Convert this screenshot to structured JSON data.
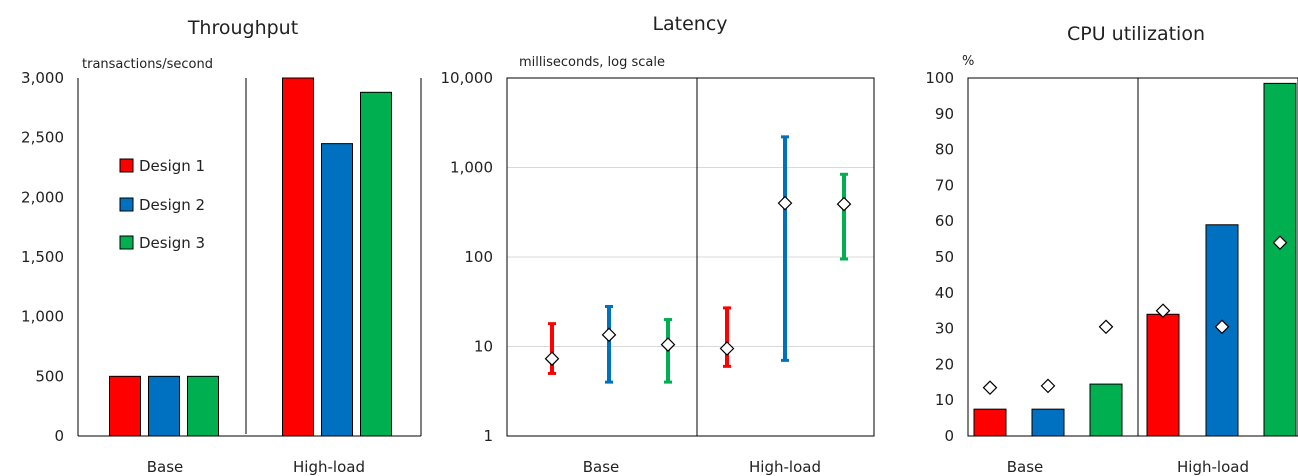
{
  "colors": {
    "design1": "#ff0000",
    "design2": "#0070c0",
    "design3": "#00b050",
    "grid": "#d9d9d9",
    "frame": "#000000"
  },
  "legend": {
    "items": [
      "Design 1",
      "Design 2",
      "Design 3"
    ]
  },
  "chart_data": [
    {
      "type": "bar",
      "title": "Throughput",
      "ylabel": "transactions/second",
      "ylim": [
        0,
        3000
      ],
      "yticks": [
        "0",
        "500",
        "1,000",
        "1,500",
        "2,000",
        "2,500",
        "3,000"
      ],
      "categories": [
        "Base",
        "High-load"
      ],
      "series": [
        {
          "name": "Design 1",
          "values": [
            500,
            3000
          ]
        },
        {
          "name": "Design 2",
          "values": [
            500,
            2450
          ]
        },
        {
          "name": "Design 3",
          "values": [
            500,
            2880
          ]
        }
      ],
      "grid": false
    },
    {
      "type": "scatter",
      "title": "Latency",
      "ylabel": "milliseconds, log scale",
      "yscale": "log",
      "ylim": [
        1,
        10000
      ],
      "yticks": [
        "1",
        "10",
        "100",
        "1,000",
        "10,000"
      ],
      "categories": [
        "Base",
        "High-load"
      ],
      "series": [
        {
          "name": "Design 1",
          "points": [
            {
              "mid": 7.3,
              "low": 5,
              "high": 18
            },
            {
              "mid": 9.5,
              "low": 6,
              "high": 27
            }
          ]
        },
        {
          "name": "Design 2",
          "points": [
            {
              "mid": 13.5,
              "low": 4,
              "high": 28
            },
            {
              "mid": 400,
              "low": 7,
              "high": 2200
            }
          ]
        },
        {
          "name": "Design 3",
          "points": [
            {
              "mid": 10.5,
              "low": 4,
              "high": 20
            },
            {
              "mid": 390,
              "low": 95,
              "high": 840
            }
          ]
        }
      ],
      "grid": true
    },
    {
      "type": "bar",
      "title": "CPU utilization",
      "ylabel": "%",
      "ylim": [
        0,
        100
      ],
      "yticks": [
        "0",
        "10",
        "20",
        "30",
        "40",
        "50",
        "60",
        "70",
        "80",
        "90",
        "100"
      ],
      "categories": [
        "Base",
        "High-load"
      ],
      "series": [
        {
          "name": "Design 1",
          "values": [
            7.5,
            34
          ],
          "markers": [
            13.5,
            35
          ]
        },
        {
          "name": "Design 2",
          "values": [
            7.5,
            59
          ],
          "markers": [
            14,
            30.5
          ]
        },
        {
          "name": "Design 3",
          "values": [
            14.5,
            98.5
          ],
          "markers": [
            30.5,
            54
          ]
        }
      ],
      "grid": false
    }
  ]
}
